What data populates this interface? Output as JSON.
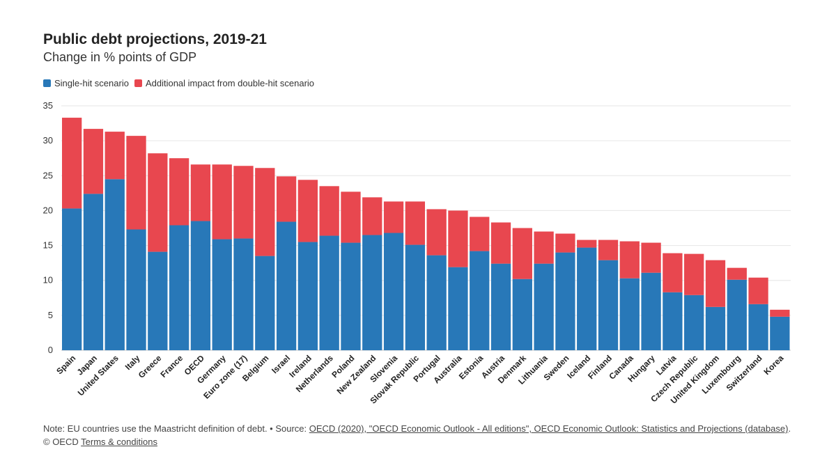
{
  "title": "Public debt projections, 2019-21",
  "subtitle": "Change in % points of GDP",
  "legend": {
    "single": "Single-hit scenario",
    "double": "Additional impact from double-hit scenario"
  },
  "colors": {
    "single": "#2878b8",
    "double": "#e8474f",
    "grid": "#e6e6e6",
    "axis": "#c8c8c8"
  },
  "note": {
    "prefix": "Note: EU countries use the Maastricht definition of debt. • Source: ",
    "source_link": "OECD (2020), \"OECD Economic Outlook - All editions\", OECD Economic Outlook: Statistics and Projections (database)",
    "middle": ". © OECD ",
    "terms_link": "Terms & conditions"
  },
  "chart_data": {
    "type": "bar",
    "stacked": true,
    "ylim": [
      0,
      35
    ],
    "yticks": [
      0,
      5,
      10,
      15,
      20,
      25,
      30,
      35
    ],
    "grid": true,
    "categories": [
      "Spain",
      "Japan",
      "United States",
      "Italy",
      "Greece",
      "France",
      "OECD",
      "Germany",
      "Euro zone (17)",
      "Belgium",
      "Israel",
      "Ireland",
      "Netherlands",
      "Poland",
      "New Zealand",
      "Slovenia",
      "Slovak Republic",
      "Portugal",
      "Australia",
      "Estonia",
      "Austria",
      "Denmark",
      "Lithuania",
      "Sweden",
      "Iceland",
      "Finland",
      "Canada",
      "Hungary",
      "Latvia",
      "Czech Republic",
      "United Kingdom",
      "Luxembourg",
      "Switzerland",
      "Korea"
    ],
    "series": [
      {
        "name": "Single-hit scenario",
        "values": [
          20.3,
          22.4,
          24.5,
          17.3,
          14.1,
          17.9,
          18.5,
          15.9,
          16.0,
          13.5,
          18.4,
          15.5,
          16.4,
          15.4,
          16.5,
          16.8,
          15.1,
          13.6,
          11.9,
          14.2,
          12.4,
          10.2,
          12.4,
          14.0,
          14.7,
          12.9,
          10.3,
          11.1,
          8.3,
          7.9,
          6.2,
          10.1,
          6.6,
          4.8
        ]
      },
      {
        "name": "Additional impact from double-hit scenario",
        "values": [
          13.0,
          9.3,
          6.8,
          13.4,
          14.1,
          9.6,
          8.1,
          10.7,
          10.4,
          12.6,
          6.5,
          8.9,
          7.1,
          7.3,
          5.4,
          4.5,
          6.2,
          6.6,
          8.1,
          4.9,
          5.9,
          7.3,
          4.6,
          2.7,
          1.1,
          2.9,
          5.3,
          4.3,
          5.6,
          5.9,
          6.7,
          1.7,
          3.8,
          1.0
        ]
      }
    ]
  }
}
